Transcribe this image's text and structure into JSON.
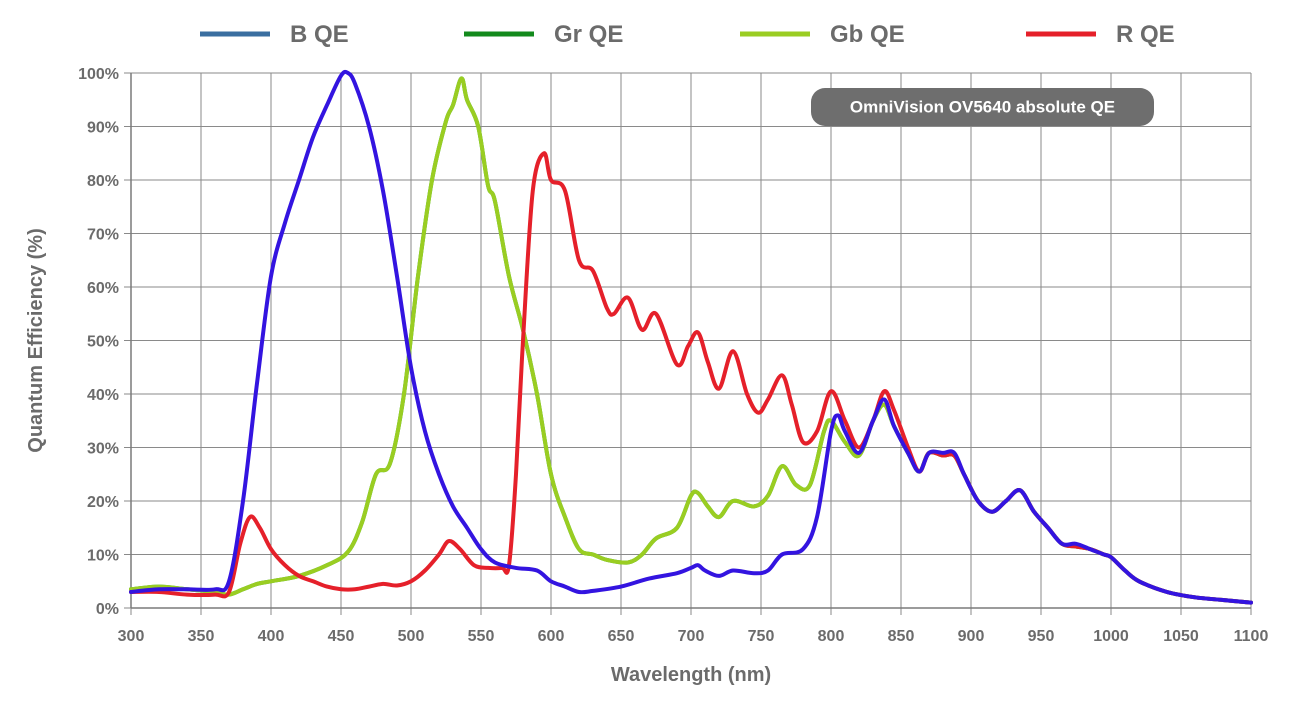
{
  "chart_data": {
    "type": "line",
    "title": "",
    "annotation": "OmniVision OV5640 absolute QE",
    "xlabel": "Wavelength (nm)",
    "ylabel": "Quantum Efficiency (%)",
    "xlim": [
      300,
      1100
    ],
    "ylim": [
      0,
      100
    ],
    "xticks": [
      "300",
      "350",
      "400",
      "450",
      "500",
      "550",
      "600",
      "650",
      "700",
      "750",
      "800",
      "850",
      "900",
      "950",
      "1000",
      "1050",
      "1100"
    ],
    "yticks": [
      "0%",
      "10%",
      "20%",
      "30%",
      "40%",
      "50%",
      "60%",
      "70%",
      "80%",
      "90%",
      "100%"
    ],
    "grid": true,
    "legend_position": "top",
    "series": [
      {
        "name": "B QE",
        "legend_color": "#3a6fa0",
        "color": "#3314e0",
        "points": [
          [
            300,
            3
          ],
          [
            320,
            3.5
          ],
          [
            340,
            3.5
          ],
          [
            360,
            3.5
          ],
          [
            370,
            5
          ],
          [
            380,
            20
          ],
          [
            390,
            42
          ],
          [
            400,
            62
          ],
          [
            410,
            72
          ],
          [
            420,
            80
          ],
          [
            430,
            88
          ],
          [
            440,
            94
          ],
          [
            450,
            99.5
          ],
          [
            455,
            100
          ],
          [
            460,
            98
          ],
          [
            470,
            90
          ],
          [
            480,
            78
          ],
          [
            490,
            62
          ],
          [
            500,
            45
          ],
          [
            510,
            33
          ],
          [
            520,
            25
          ],
          [
            530,
            19
          ],
          [
            540,
            15
          ],
          [
            550,
            11
          ],
          [
            560,
            8.5
          ],
          [
            575,
            7.5
          ],
          [
            590,
            7
          ],
          [
            600,
            5
          ],
          [
            610,
            4
          ],
          [
            620,
            3
          ],
          [
            630,
            3.2
          ],
          [
            650,
            4
          ],
          [
            670,
            5.5
          ],
          [
            690,
            6.5
          ],
          [
            700,
            7.5
          ],
          [
            705,
            8
          ],
          [
            710,
            7
          ],
          [
            720,
            6
          ],
          [
            730,
            7
          ],
          [
            745,
            6.5
          ],
          [
            755,
            7
          ],
          [
            765,
            10
          ],
          [
            780,
            11
          ],
          [
            790,
            17
          ],
          [
            800,
            33
          ],
          [
            805,
            36
          ],
          [
            810,
            33
          ],
          [
            820,
            29
          ],
          [
            830,
            35
          ],
          [
            838,
            39
          ],
          [
            845,
            34
          ],
          [
            855,
            29
          ],
          [
            863,
            25.5
          ],
          [
            870,
            29
          ],
          [
            880,
            29
          ],
          [
            888,
            29
          ],
          [
            895,
            25
          ],
          [
            905,
            20
          ],
          [
            915,
            18
          ],
          [
            925,
            20
          ],
          [
            935,
            22
          ],
          [
            945,
            18
          ],
          [
            955,
            15
          ],
          [
            965,
            12
          ],
          [
            975,
            12
          ],
          [
            985,
            11
          ],
          [
            995,
            10
          ],
          [
            1000,
            9.5
          ],
          [
            1010,
            7
          ],
          [
            1020,
            5
          ],
          [
            1040,
            3
          ],
          [
            1060,
            2
          ],
          [
            1080,
            1.5
          ],
          [
            1100,
            1
          ]
        ]
      },
      {
        "name": "Gr QE",
        "legend_color": "#138a1c",
        "color": "#1fae4a",
        "points": [
          [
            300,
            3.5
          ],
          [
            320,
            4
          ],
          [
            340,
            3.5
          ],
          [
            360,
            3
          ],
          [
            370,
            2.5
          ],
          [
            380,
            3.5
          ],
          [
            390,
            4.5
          ],
          [
            400,
            5
          ],
          [
            420,
            6
          ],
          [
            440,
            8
          ],
          [
            455,
            10.5
          ],
          [
            465,
            16
          ],
          [
            475,
            25
          ],
          [
            485,
            27
          ],
          [
            495,
            40
          ],
          [
            505,
            62
          ],
          [
            515,
            80
          ],
          [
            525,
            91
          ],
          [
            530,
            94
          ],
          [
            536,
            99
          ],
          [
            540,
            95
          ],
          [
            548,
            90
          ],
          [
            555,
            79
          ],
          [
            560,
            76
          ],
          [
            570,
            62
          ],
          [
            580,
            52
          ],
          [
            590,
            40
          ],
          [
            600,
            25
          ],
          [
            610,
            17
          ],
          [
            620,
            11
          ],
          [
            630,
            10
          ],
          [
            640,
            9
          ],
          [
            655,
            8.5
          ],
          [
            665,
            10
          ],
          [
            675,
            13
          ],
          [
            690,
            15
          ],
          [
            700,
            21
          ],
          [
            705,
            21.5
          ],
          [
            712,
            19
          ],
          [
            720,
            17
          ],
          [
            730,
            20
          ],
          [
            745,
            19
          ],
          [
            755,
            21
          ],
          [
            765,
            26.5
          ],
          [
            775,
            23
          ],
          [
            785,
            23
          ],
          [
            795,
            33
          ],
          [
            800,
            35
          ],
          [
            810,
            31
          ],
          [
            820,
            28.5
          ],
          [
            830,
            35
          ],
          [
            838,
            38
          ],
          [
            845,
            34
          ],
          [
            855,
            29
          ],
          [
            863,
            25.5
          ],
          [
            870,
            29
          ],
          [
            880,
            28.5
          ],
          [
            888,
            28.5
          ],
          [
            895,
            25
          ],
          [
            905,
            20
          ],
          [
            915,
            18
          ],
          [
            925,
            20
          ],
          [
            935,
            22
          ],
          [
            945,
            18
          ],
          [
            955,
            15
          ],
          [
            965,
            12
          ],
          [
            975,
            11.5
          ],
          [
            985,
            11
          ],
          [
            995,
            10
          ],
          [
            1000,
            9.5
          ],
          [
            1010,
            7
          ],
          [
            1020,
            5
          ],
          [
            1040,
            3
          ],
          [
            1060,
            2
          ],
          [
            1080,
            1.5
          ],
          [
            1100,
            1
          ]
        ]
      },
      {
        "name": "Gb QE",
        "legend_color": "#9acd22",
        "color": "#9acd22",
        "points": [
          [
            300,
            3.5
          ],
          [
            320,
            4
          ],
          [
            340,
            3.5
          ],
          [
            360,
            3
          ],
          [
            370,
            2.5
          ],
          [
            380,
            3.5
          ],
          [
            390,
            4.5
          ],
          [
            400,
            5
          ],
          [
            420,
            6
          ],
          [
            440,
            8
          ],
          [
            455,
            10.5
          ],
          [
            465,
            16
          ],
          [
            475,
            25
          ],
          [
            485,
            27
          ],
          [
            495,
            40
          ],
          [
            505,
            62
          ],
          [
            515,
            80
          ],
          [
            525,
            91
          ],
          [
            530,
            94
          ],
          [
            536,
            99
          ],
          [
            540,
            95
          ],
          [
            548,
            90
          ],
          [
            555,
            79
          ],
          [
            560,
            76
          ],
          [
            570,
            62
          ],
          [
            580,
            52
          ],
          [
            590,
            40
          ],
          [
            600,
            25
          ],
          [
            610,
            17
          ],
          [
            620,
            11
          ],
          [
            630,
            10
          ],
          [
            640,
            9
          ],
          [
            655,
            8.5
          ],
          [
            665,
            10
          ],
          [
            675,
            13
          ],
          [
            690,
            15
          ],
          [
            700,
            21
          ],
          [
            705,
            21.5
          ],
          [
            712,
            19
          ],
          [
            720,
            17
          ],
          [
            730,
            20
          ],
          [
            745,
            19
          ],
          [
            755,
            21
          ],
          [
            765,
            26.5
          ],
          [
            775,
            23
          ],
          [
            785,
            23
          ],
          [
            795,
            33
          ],
          [
            800,
            35
          ],
          [
            810,
            31
          ],
          [
            820,
            28.5
          ],
          [
            830,
            35
          ],
          [
            838,
            38
          ],
          [
            845,
            34
          ],
          [
            855,
            29
          ],
          [
            863,
            25.5
          ],
          [
            870,
            29
          ],
          [
            880,
            28.5
          ],
          [
            888,
            28.5
          ],
          [
            895,
            25
          ],
          [
            905,
            20
          ],
          [
            915,
            18
          ],
          [
            925,
            20
          ],
          [
            935,
            22
          ],
          [
            945,
            18
          ],
          [
            955,
            15
          ],
          [
            965,
            12
          ],
          [
            975,
            11.5
          ],
          [
            985,
            11
          ],
          [
            995,
            10
          ],
          [
            1000,
            9.5
          ],
          [
            1010,
            7
          ],
          [
            1020,
            5
          ],
          [
            1040,
            3
          ],
          [
            1060,
            2
          ],
          [
            1080,
            1.5
          ],
          [
            1100,
            1
          ]
        ]
      },
      {
        "name": "R QE",
        "legend_color": "#e5202a",
        "color": "#e5202a",
        "points": [
          [
            300,
            3
          ],
          [
            320,
            3
          ],
          [
            340,
            2.5
          ],
          [
            360,
            2.5
          ],
          [
            370,
            3
          ],
          [
            378,
            12
          ],
          [
            385,
            17
          ],
          [
            392,
            15
          ],
          [
            400,
            11
          ],
          [
            410,
            8
          ],
          [
            420,
            6
          ],
          [
            430,
            5
          ],
          [
            440,
            4
          ],
          [
            450,
            3.5
          ],
          [
            460,
            3.5
          ],
          [
            470,
            4
          ],
          [
            480,
            4.5
          ],
          [
            490,
            4.2
          ],
          [
            500,
            5
          ],
          [
            510,
            7
          ],
          [
            520,
            10
          ],
          [
            527,
            12.5
          ],
          [
            535,
            11
          ],
          [
            545,
            8
          ],
          [
            555,
            7.5
          ],
          [
            565,
            7.5
          ],
          [
            570,
            8
          ],
          [
            575,
            25
          ],
          [
            580,
            50
          ],
          [
            587,
            78
          ],
          [
            595,
            85
          ],
          [
            600,
            80
          ],
          [
            610,
            78
          ],
          [
            620,
            65
          ],
          [
            630,
            63
          ],
          [
            640,
            56
          ],
          [
            645,
            55
          ],
          [
            655,
            58
          ],
          [
            665,
            52
          ],
          [
            675,
            55
          ],
          [
            690,
            45.5
          ],
          [
            698,
            49
          ],
          [
            705,
            51.5
          ],
          [
            712,
            46
          ],
          [
            720,
            41
          ],
          [
            730,
            48
          ],
          [
            740,
            40
          ],
          [
            748,
            36.5
          ],
          [
            755,
            39
          ],
          [
            765,
            43.5
          ],
          [
            772,
            38
          ],
          [
            780,
            31
          ],
          [
            790,
            33
          ],
          [
            800,
            40.5
          ],
          [
            810,
            35
          ],
          [
            820,
            30
          ],
          [
            830,
            35
          ],
          [
            838,
            40.5
          ],
          [
            845,
            37
          ],
          [
            855,
            30
          ],
          [
            863,
            25.5
          ],
          [
            870,
            29
          ],
          [
            880,
            28.5
          ],
          [
            888,
            28.5
          ],
          [
            895,
            25
          ],
          [
            905,
            20
          ],
          [
            915,
            18
          ],
          [
            925,
            20
          ],
          [
            935,
            22
          ],
          [
            945,
            18
          ],
          [
            955,
            15
          ],
          [
            965,
            12
          ],
          [
            975,
            11.5
          ],
          [
            985,
            11
          ],
          [
            995,
            10
          ],
          [
            1000,
            9.5
          ],
          [
            1010,
            7
          ],
          [
            1020,
            5
          ],
          [
            1040,
            3
          ],
          [
            1060,
            2
          ],
          [
            1080,
            1.5
          ],
          [
            1100,
            1
          ]
        ]
      }
    ]
  }
}
